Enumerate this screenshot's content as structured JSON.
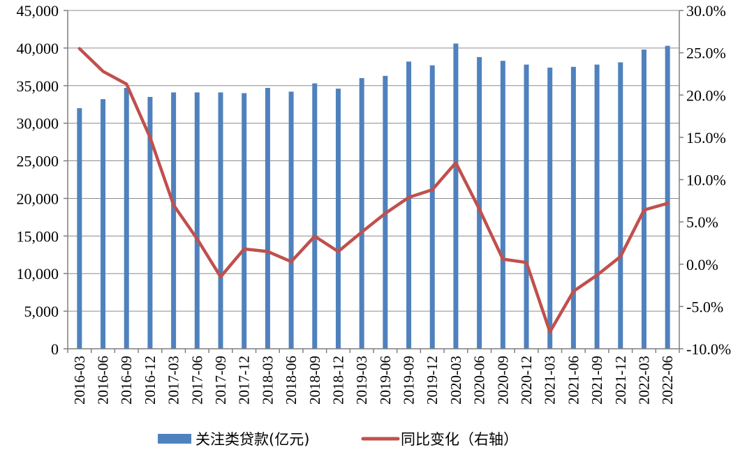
{
  "chart_data": {
    "type": "bar+line",
    "categories": [
      "2016-03",
      "2016-06",
      "2016-09",
      "2016-12",
      "2017-03",
      "2017-06",
      "2017-09",
      "2017-12",
      "2018-03",
      "2018-06",
      "2018-09",
      "2018-12",
      "2019-03",
      "2019-06",
      "2019-09",
      "2019-12",
      "2020-03",
      "2020-06",
      "2020-09",
      "2020-12",
      "2021-03",
      "2021-06",
      "2021-09",
      "2021-12",
      "2022-03",
      "2022-06"
    ],
    "series": [
      {
        "name": "关注类贷款(亿元)",
        "type": "bar",
        "axis": "left",
        "color": "#4F81BD",
        "values": [
          32000,
          33200,
          34700,
          33500,
          34100,
          34100,
          34100,
          34000,
          34700,
          34200,
          35300,
          34600,
          36000,
          36300,
          38200,
          37700,
          40600,
          38800,
          38300,
          37800,
          37400,
          37500,
          37800,
          38100,
          39800,
          40300
        ]
      },
      {
        "name": "同比变化（右轴）",
        "type": "line",
        "axis": "right",
        "color": "#C0504D",
        "values": [
          25.5,
          22.8,
          21.3,
          15.0,
          7.0,
          3.0,
          -1.5,
          1.8,
          1.5,
          0.3,
          3.3,
          1.5,
          3.8,
          6.0,
          7.9,
          8.8,
          12.0,
          6.5,
          0.6,
          0.2,
          -8.0,
          -3.2,
          -1.3,
          0.9,
          6.4,
          7.2
        ]
      }
    ],
    "y_left": {
      "min": 0,
      "max": 45000,
      "ticks": [
        "0",
        "5,000",
        "10,000",
        "15,000",
        "20,000",
        "25,000",
        "30,000",
        "35,000",
        "40,000",
        "45,000"
      ]
    },
    "y_right": {
      "min": -10,
      "max": 30,
      "ticks": [
        "-10.0%",
        "-5.0%",
        "0.0%",
        "5.0%",
        "10.0%",
        "15.0%",
        "20.0%",
        "25.0%",
        "30.0%"
      ]
    },
    "grid": "horizontal",
    "legend_position": "bottom"
  }
}
